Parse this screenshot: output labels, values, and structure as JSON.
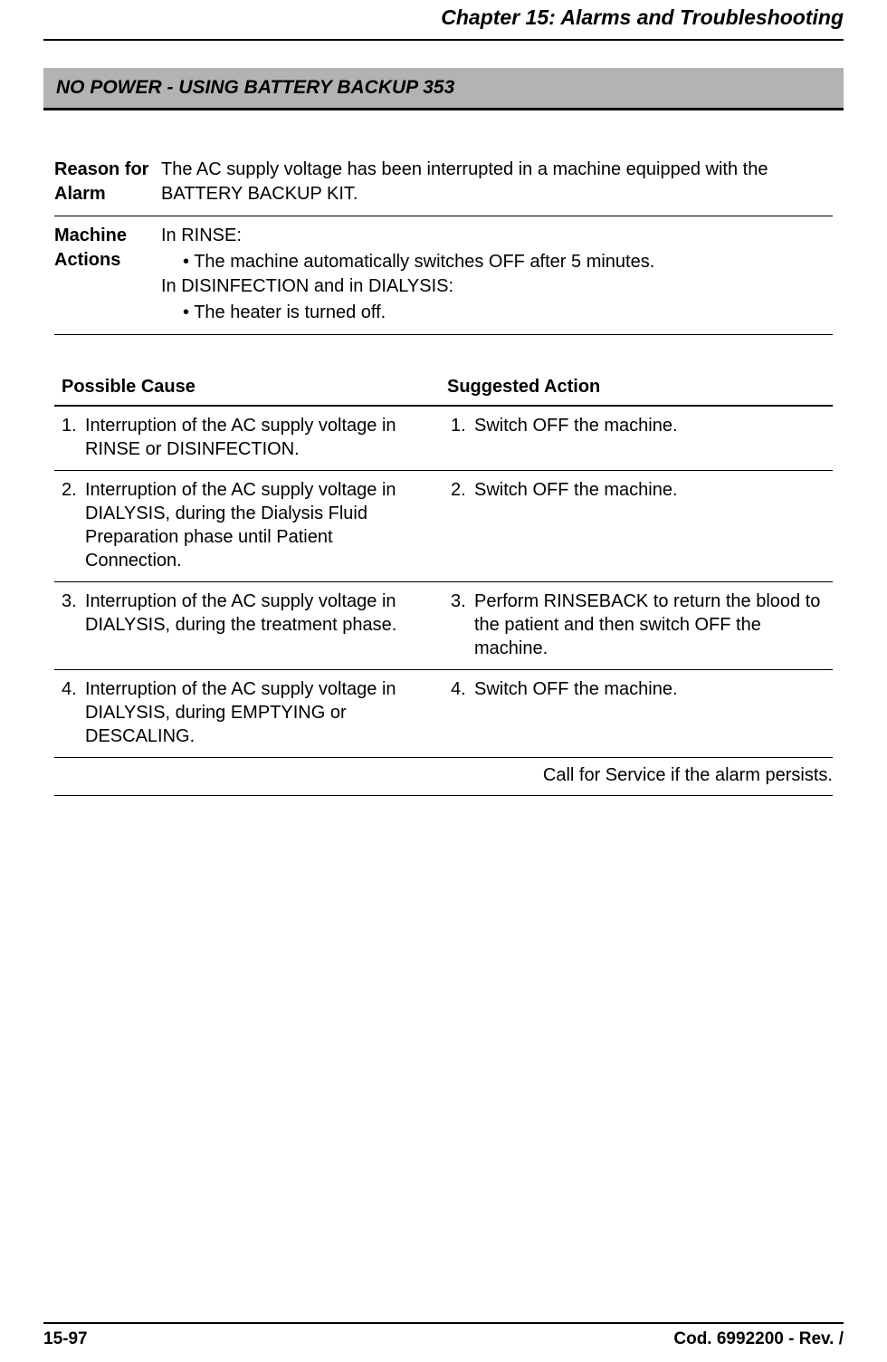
{
  "header": {
    "chapter_title": "Chapter 15: Alarms and Troubleshooting"
  },
  "section": {
    "title": "NO POWER - USING BATTERY BACKUP 353"
  },
  "info": {
    "rows": [
      {
        "label": "Reason for Alarm",
        "lines": [
          {
            "text": "The AC supply voltage has been interrupted in a machine equipped with the BATTERY BACKUP KIT.",
            "bullet": false
          }
        ]
      },
      {
        "label": "Machine Actions",
        "lines": [
          {
            "text": "In RINSE:",
            "bullet": false
          },
          {
            "text": "• The machine automatically switches OFF after 5 minutes.",
            "bullet": true
          },
          {
            "text": "In DISINFECTION and in DIALYSIS:",
            "bullet": false
          },
          {
            "text": "• The heater is turned off.",
            "bullet": true
          }
        ]
      }
    ]
  },
  "cause_table": {
    "header_cause": "Possible Cause",
    "header_action": "Suggested Action",
    "rows": [
      {
        "cause_num": "1.",
        "cause_text": "Interruption of the AC supply voltage in RINSE or DISINFECTION.",
        "action_num": "1.",
        "action_text": "Switch OFF the machine."
      },
      {
        "cause_num": "2.",
        "cause_text": "Interruption of the AC supply voltage in DIALYSIS, during the Dialysis Fluid Preparation phase until Patient Connection.",
        "action_num": "2.",
        "action_text": "Switch OFF the machine."
      },
      {
        "cause_num": "3.",
        "cause_text": "Interruption of the AC supply voltage in DIALYSIS, during the treatment phase.",
        "action_num": "3.",
        "action_text": "Perform RINSEBACK to return the blood to the patient and then switch OFF the machine."
      },
      {
        "cause_num": "4.",
        "cause_text": "Interruption of the AC supply voltage in DIALYSIS, during EMPTYING or DESCALING.",
        "action_num": "4.",
        "action_text": "Switch OFF the machine."
      }
    ],
    "footer_note": "Call for Service if the alarm persists."
  },
  "footer": {
    "page_num": "15-97",
    "doc_code": "Cod. 6992200 - Rev. /"
  }
}
